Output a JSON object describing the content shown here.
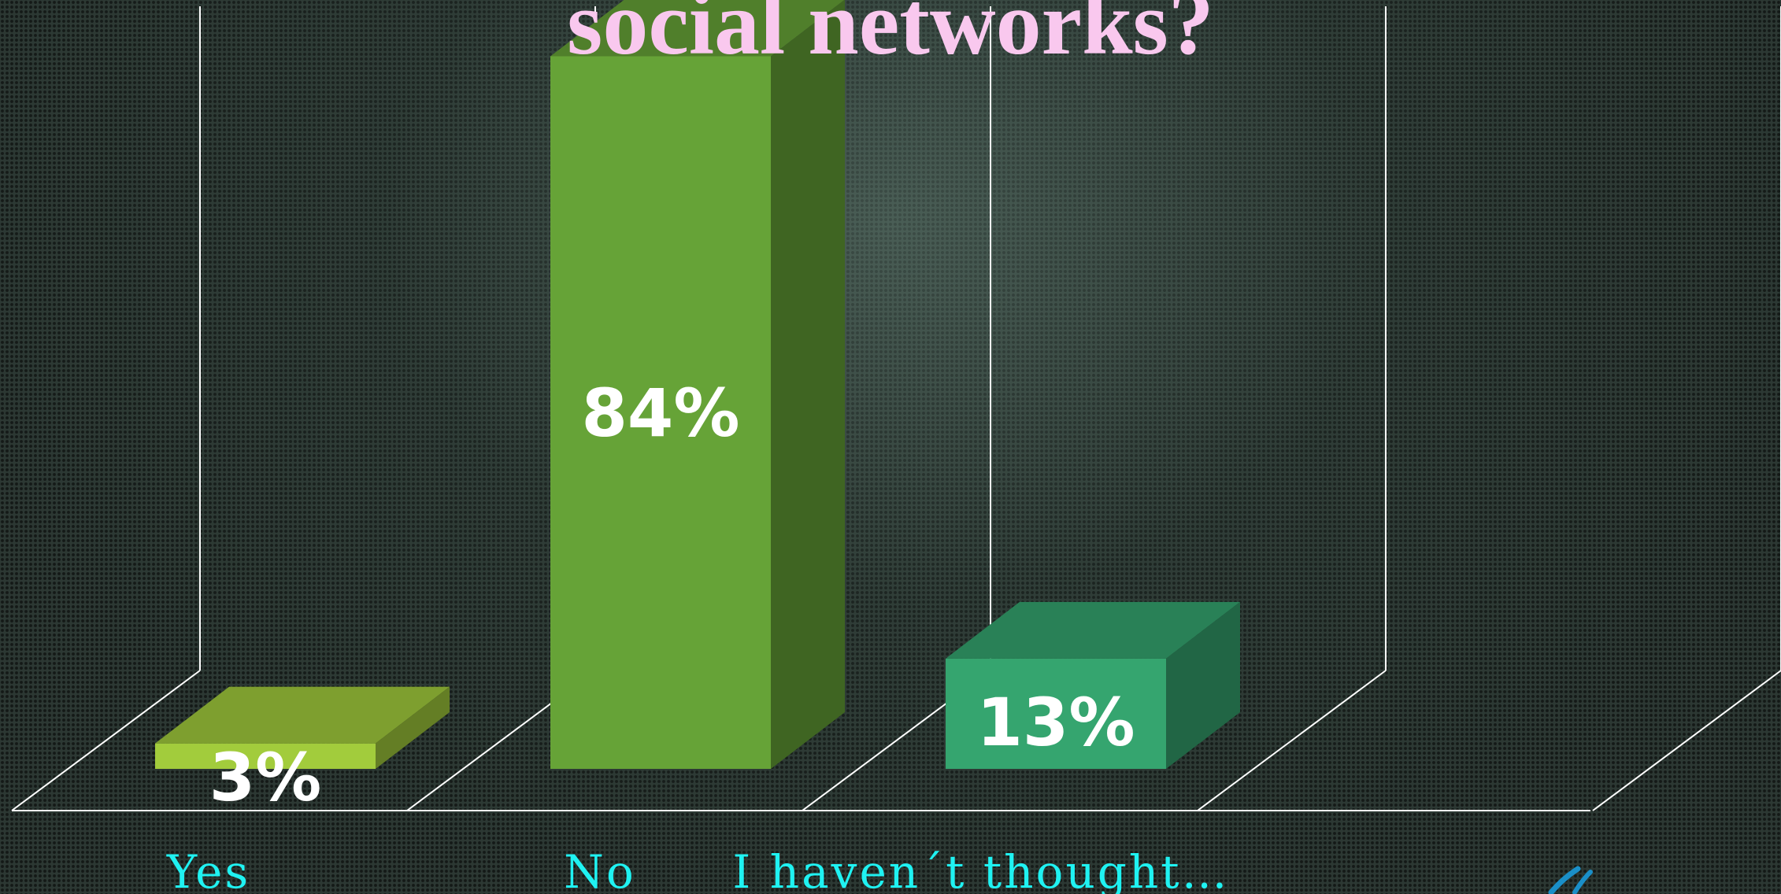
{
  "title": "social networks?",
  "chart_data": {
    "type": "bar",
    "title": "social networks?",
    "categories": [
      "Yes",
      "No",
      "I haven´t thought…"
    ],
    "values": [
      3,
      84,
      13
    ],
    "data_labels": [
      "3%",
      "84%",
      "13%"
    ],
    "unit": "%",
    "ylim": [
      0,
      100
    ],
    "grid": false,
    "style": "3d-column",
    "colors": {
      "bars": [
        "#a2cc3c",
        "#66a337",
        "#35a56f"
      ],
      "category_labels": "#1ff2f2",
      "data_labels": "#ffffff",
      "title": "#f9c8ee",
      "axis_lines": "#ffffff"
    }
  }
}
